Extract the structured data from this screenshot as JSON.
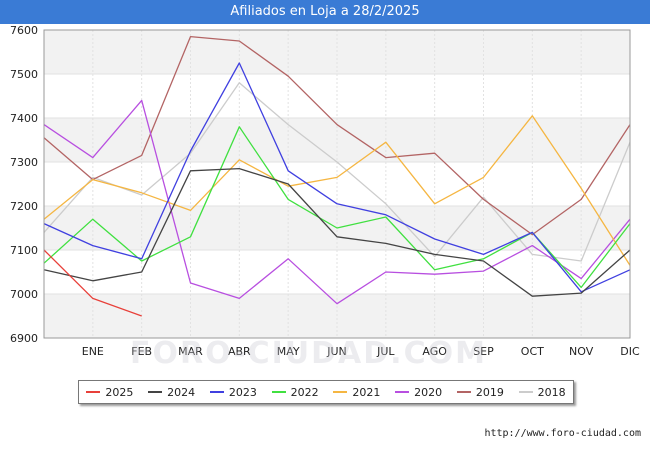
{
  "header": {
    "title": "Afiliados en Loja a 28/2/2025"
  },
  "source": "http://www.foro-ciudad.com",
  "watermark": "FORO-CIUDAD.COM",
  "chart_data": {
    "type": "line",
    "title": "Afiliados en Loja a 28/2/2025",
    "xlabel": "",
    "ylabel": "",
    "categories": [
      "",
      "ENE",
      "FEB",
      "MAR",
      "ABR",
      "MAY",
      "JUN",
      "JUL",
      "AGO",
      "SEP",
      "OCT",
      "NOV",
      "DIC"
    ],
    "ylim": [
      6900,
      7600
    ],
    "yticks": [
      6900,
      7000,
      7100,
      7200,
      7300,
      7400,
      7500,
      7600
    ],
    "grid": true,
    "legend_position": "bottom",
    "series": [
      {
        "name": "2025",
        "color": "#e8403a",
        "values": [
          7100,
          6990,
          6950,
          null,
          null,
          null,
          null,
          null,
          null,
          null,
          null,
          null,
          null
        ]
      },
      {
        "name": "2024",
        "color": "#444444",
        "values": [
          7055,
          7030,
          7050,
          7280,
          7285,
          7250,
          7130,
          7115,
          7090,
          7075,
          6995,
          7002,
          7100
        ]
      },
      {
        "name": "2023",
        "color": "#4040e0",
        "values": [
          7160,
          7110,
          7080,
          7325,
          7525,
          7280,
          7205,
          7180,
          7125,
          7090,
          7140,
          7005,
          7055
        ]
      },
      {
        "name": "2022",
        "color": "#40e040",
        "values": [
          7070,
          7170,
          7075,
          7130,
          7380,
          7215,
          7150,
          7175,
          7055,
          7080,
          7140,
          7015,
          7160
        ]
      },
      {
        "name": "2021",
        "color": "#f5b642",
        "values": [
          7170,
          7260,
          7230,
          7190,
          7305,
          7245,
          7265,
          7345,
          7205,
          7265,
          7405,
          7240,
          7065
        ]
      },
      {
        "name": "2020",
        "color": "#b84fe0",
        "values": [
          7385,
          7310,
          7440,
          7025,
          6990,
          7080,
          6978,
          7050,
          7045,
          7052,
          7110,
          7035,
          7170
        ]
      },
      {
        "name": "2019",
        "color": "#b36464",
        "values": [
          7355,
          7260,
          7315,
          7585,
          7575,
          7495,
          7385,
          7310,
          7320,
          7215,
          7135,
          7215,
          7385
        ]
      },
      {
        "name": "2018",
        "color": "#cccccc",
        "values": [
          7140,
          7265,
          7225,
          7320,
          7480,
          7385,
          7300,
          7205,
          7085,
          7220,
          7090,
          7075,
          7345
        ]
      }
    ]
  }
}
